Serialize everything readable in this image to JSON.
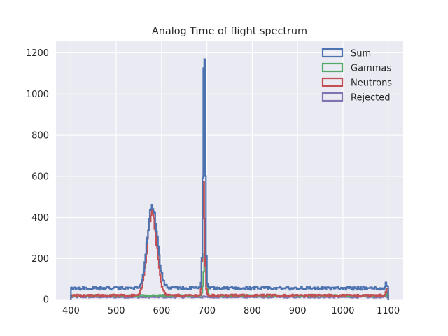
{
  "chart_data": {
    "type": "histogram-step",
    "title": "Analog Time of flight spectrum",
    "xlabel": "",
    "ylabel": "",
    "xlim": [
      367,
      1133
    ],
    "ylim": [
      0,
      1260
    ],
    "x_range": [
      400,
      1100
    ],
    "xticks": [
      "400",
      "500",
      "600",
      "700",
      "800",
      "900",
      "1000",
      "1100"
    ],
    "yticks": [
      "0",
      "200",
      "400",
      "600",
      "800",
      "1000",
      "1200"
    ],
    "grid": true,
    "legend_position": "top-right",
    "series": [
      {
        "name": "Sum",
        "color": "#4c72b0",
        "baseline": 55,
        "noise": 8,
        "peaks": [
          {
            "center": 580,
            "height": 400,
            "width": 11
          },
          {
            "center": 694,
            "height": 1140,
            "width": 2.5
          }
        ]
      },
      {
        "name": "Gammas",
        "color": "#55a868",
        "baseline": 18,
        "noise": 5,
        "peaks": [
          {
            "center": 696,
            "height": 200,
            "width": 3
          }
        ]
      },
      {
        "name": "Neutrons",
        "color": "#c44e52",
        "baseline": 20,
        "noise": 5,
        "peaks": [
          {
            "center": 579,
            "height": 410,
            "width": 10.5
          },
          {
            "center": 693,
            "height": 540,
            "width": 2.5
          }
        ]
      },
      {
        "name": "Rejected",
        "color": "#8172b2",
        "baseline": 12,
        "noise": 4,
        "peaks": []
      }
    ]
  }
}
